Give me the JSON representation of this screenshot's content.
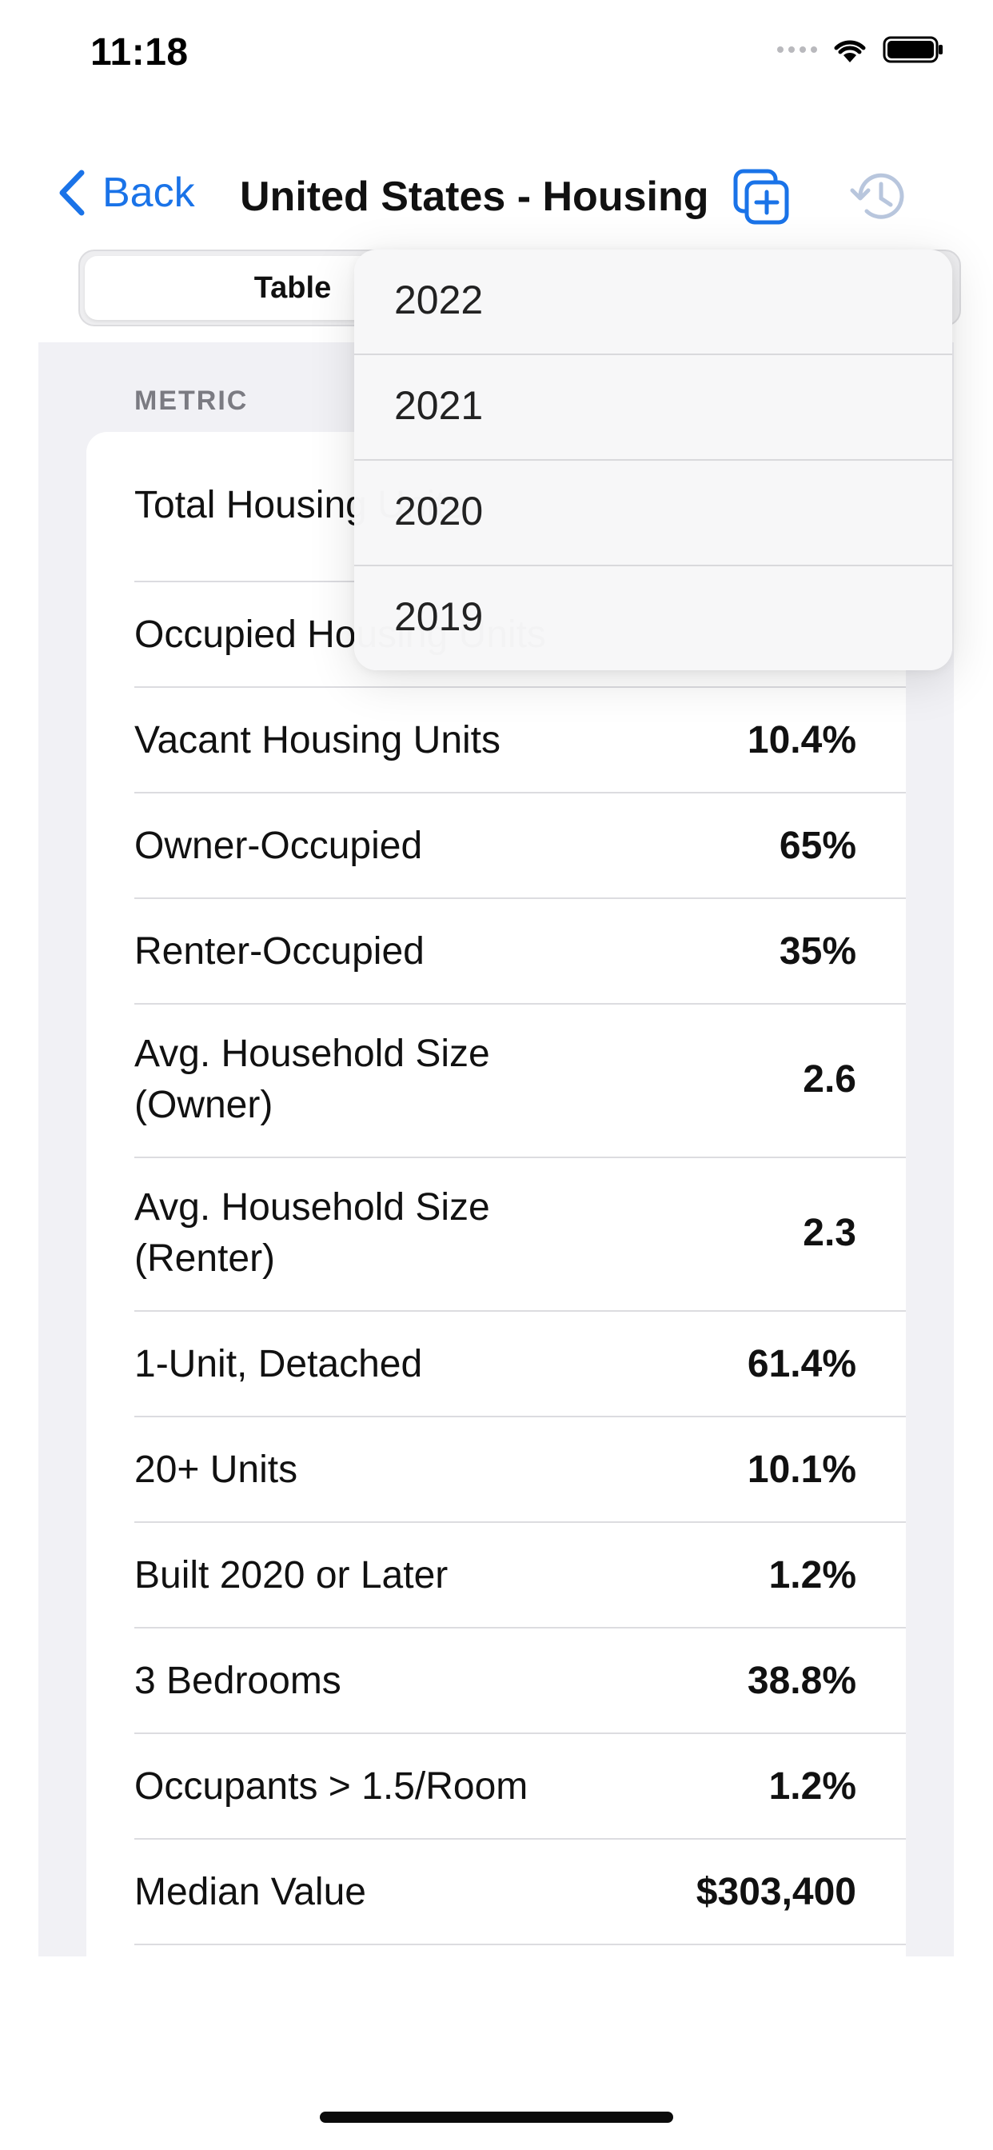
{
  "status_bar": {
    "time": "11:18"
  },
  "nav": {
    "back_label": "Back",
    "title": "United States - Housing",
    "add_icon": "square-stack-plus-icon",
    "history_icon": "clock-history-icon"
  },
  "segmented": {
    "active_label": "Table"
  },
  "table": {
    "section_header": "METRIC",
    "rows": [
      {
        "label": "Total Housing Units",
        "value": ""
      },
      {
        "label": "Occupied Housing Units",
        "value": ""
      },
      {
        "label": "Vacant Housing Units",
        "value": "10.4%"
      },
      {
        "label": "Owner-Occupied",
        "value": "65%"
      },
      {
        "label": "Renter-Occupied",
        "value": "35%"
      },
      {
        "label": "Avg. Household Size\n(Owner)",
        "value": "2.6"
      },
      {
        "label": "Avg. Household Size\n(Renter)",
        "value": "2.3"
      },
      {
        "label": "1-Unit, Detached",
        "value": "61.4%"
      },
      {
        "label": "20+ Units",
        "value": "10.1%"
      },
      {
        "label": "Built 2020 or Later",
        "value": "1.2%"
      },
      {
        "label": "3 Bedrooms",
        "value": "38.8%"
      },
      {
        "label": "Occupants > 1.5/Room",
        "value": "1.2%"
      },
      {
        "label": "Median Value",
        "value": "$303,400"
      }
    ]
  },
  "year_menu": {
    "options": [
      "2022",
      "2021",
      "2020",
      "2019"
    ]
  },
  "colors": {
    "accent": "#1a73e8",
    "history_icon_disabled": "#b8c6dd"
  }
}
